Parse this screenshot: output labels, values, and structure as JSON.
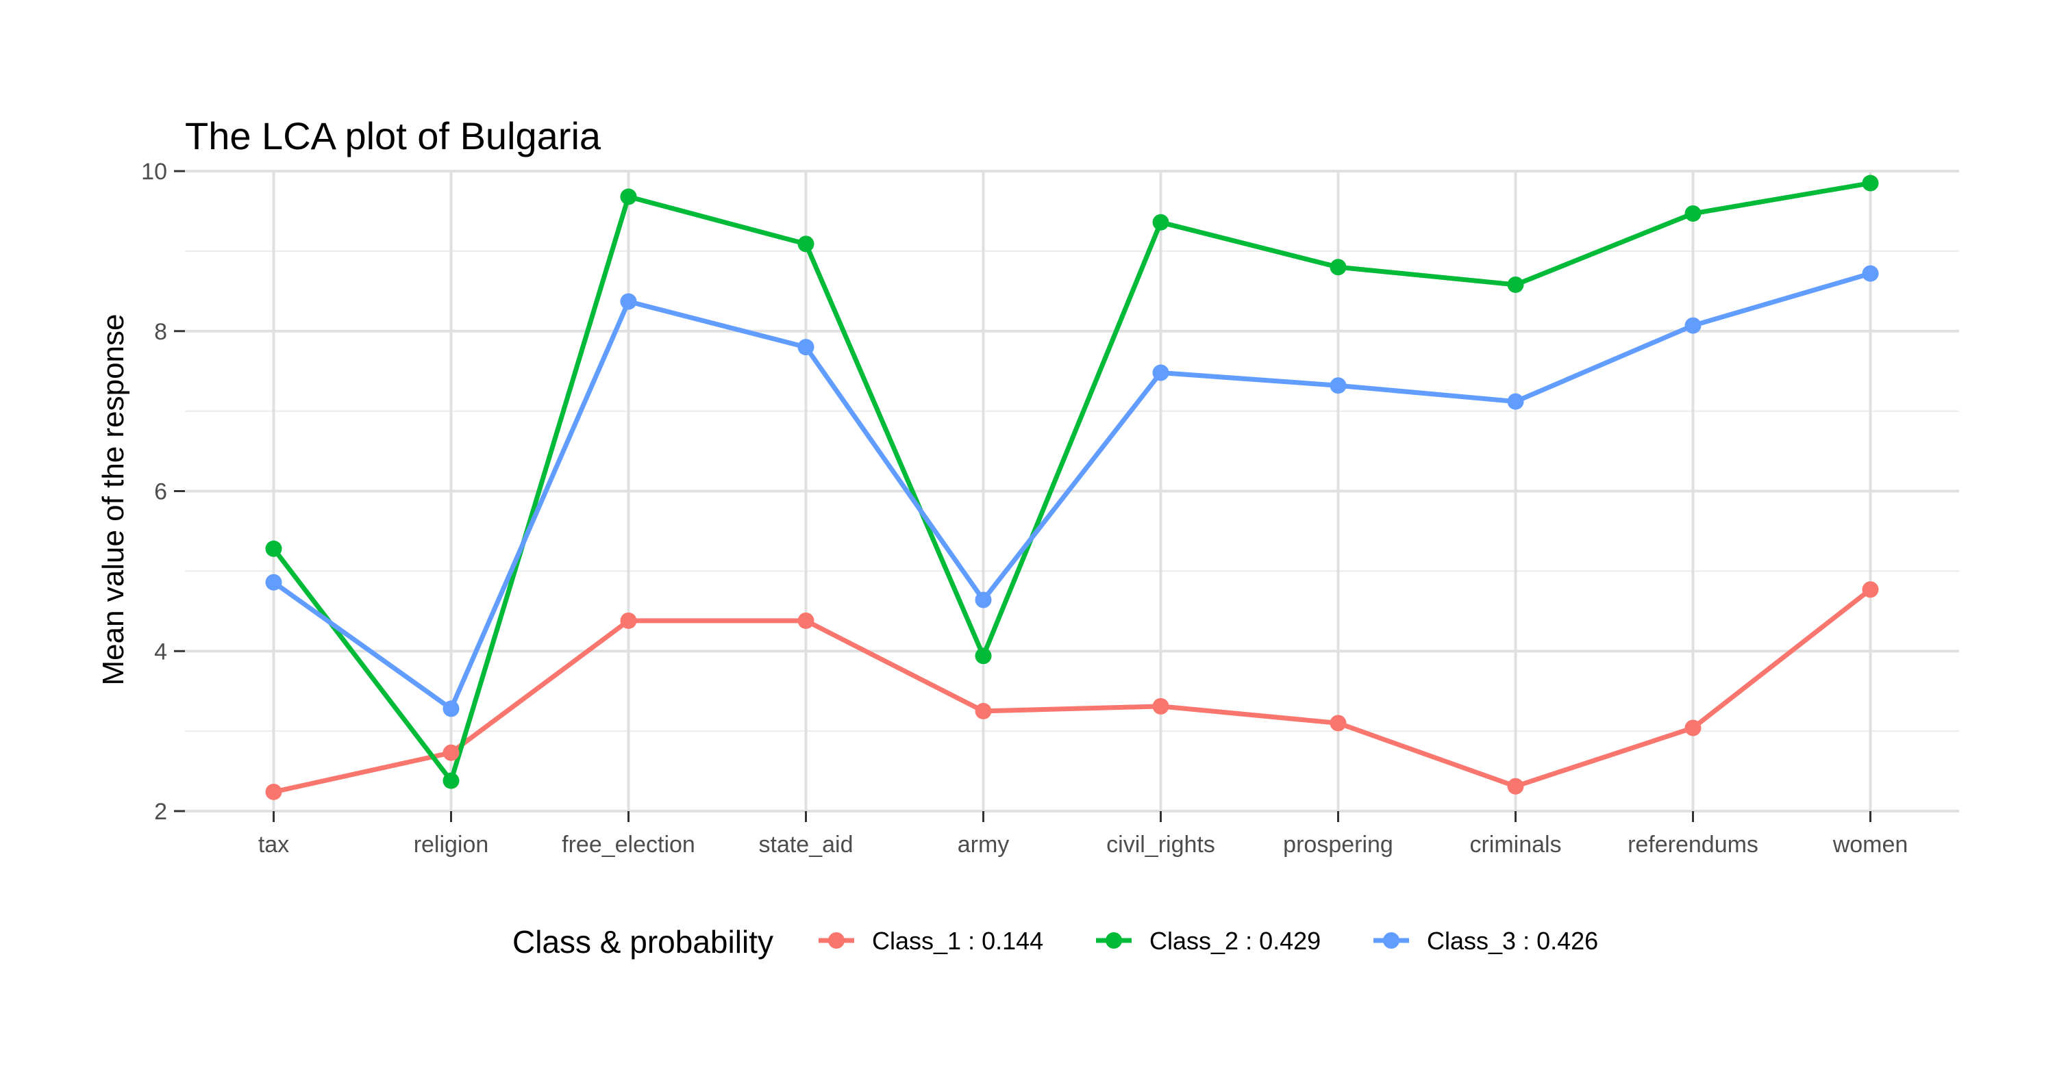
{
  "chart_data": {
    "type": "line",
    "title": "The LCA plot of Bulgaria",
    "xlabel": "",
    "ylabel": "Mean value of the response",
    "categories": [
      "tax",
      "religion",
      "free_election",
      "state_aid",
      "army",
      "civil_rights",
      "prospering",
      "criminals",
      "referendums",
      "women"
    ],
    "ylim": [
      2,
      10
    ],
    "yticks": [
      2,
      4,
      6,
      8,
      10
    ],
    "grid": true,
    "legend": {
      "title": "Class & probability",
      "placement": "bottom"
    },
    "series": [
      {
        "name": "Class_1 : 0.144",
        "color": "#F8766D",
        "values": [
          2.24,
          2.73,
          4.38,
          4.38,
          3.25,
          3.31,
          3.1,
          2.31,
          3.04,
          4.77
        ]
      },
      {
        "name": "Class_2 : 0.429",
        "color": "#00BA38",
        "values": [
          5.28,
          2.38,
          9.68,
          9.09,
          3.94,
          9.36,
          8.8,
          8.58,
          9.47,
          9.85
        ]
      },
      {
        "name": "Class_3 : 0.426",
        "color": "#619CFF",
        "values": [
          4.86,
          3.28,
          8.37,
          7.8,
          4.64,
          7.48,
          7.32,
          7.12,
          8.07,
          8.72
        ]
      }
    ]
  }
}
